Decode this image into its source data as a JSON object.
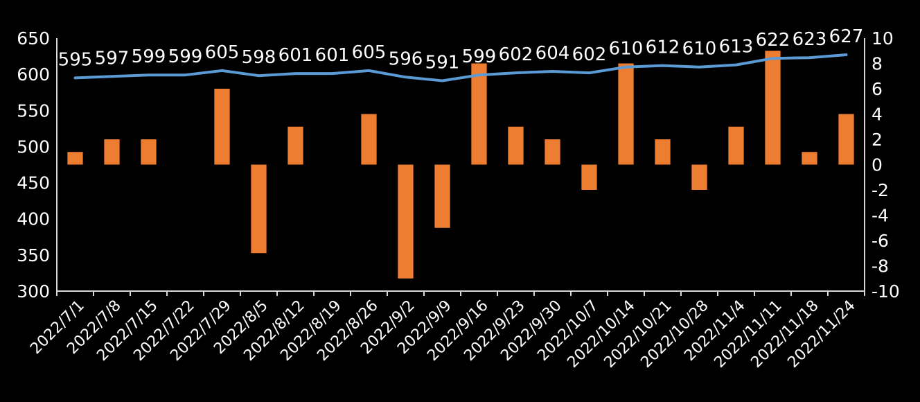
{
  "chart_data": {
    "type": "bar+line",
    "categories": [
      "2022/7/1",
      "2022/7/8",
      "2022/7/15",
      "2022/7/22",
      "2022/7/29",
      "2022/8/5",
      "2022/8/12",
      "2022/8/19",
      "2022/8/26",
      "2022/9/2",
      "2022/9/9",
      "2022/9/16",
      "2022/9/23",
      "2022/9/30",
      "2022/10/7",
      "2022/10/14",
      "2022/10/21",
      "2022/10/28",
      "2022/11/4",
      "2022/11/11",
      "2022/11/18",
      "2022/11/24"
    ],
    "series": [
      {
        "type": "bar",
        "axis": "right",
        "values": [
          1,
          2,
          2,
          0,
          6,
          -7,
          3,
          0,
          4,
          -9,
          -5,
          8,
          3,
          2,
          -2,
          8,
          2,
          -2,
          3,
          9,
          1,
          4
        ],
        "color": "#ED7D31"
      },
      {
        "type": "line",
        "axis": "left",
        "values": [
          595,
          597,
          599,
          599,
          605,
          598,
          601,
          601,
          605,
          596,
          591,
          599,
          602,
          604,
          602,
          610,
          612,
          610,
          613,
          622,
          623,
          627
        ],
        "labels": [
          "595",
          "597",
          "599",
          "599",
          "605",
          "598",
          "601",
          "601",
          "605",
          "596",
          "591",
          "599",
          "602",
          "604",
          "602",
          "610",
          "612",
          "610",
          "613",
          "622",
          "623",
          "627"
        ],
        "color": "#5B9BD5"
      }
    ],
    "y_left": {
      "ylim": [
        300,
        650
      ],
      "ticks": [
        "300",
        "350",
        "400",
        "450",
        "500",
        "550",
        "600",
        "650"
      ]
    },
    "y_right": {
      "ylim": [
        -10,
        10
      ],
      "ticks": [
        "-10",
        "-8",
        "-6",
        "-4",
        "-2",
        "0",
        "2",
        "4",
        "6",
        "8",
        "10"
      ]
    },
    "grid": false,
    "legend": "none",
    "axis_color": "#D9D9D9",
    "text_color": "#FFFFFF",
    "background": "#000000"
  }
}
